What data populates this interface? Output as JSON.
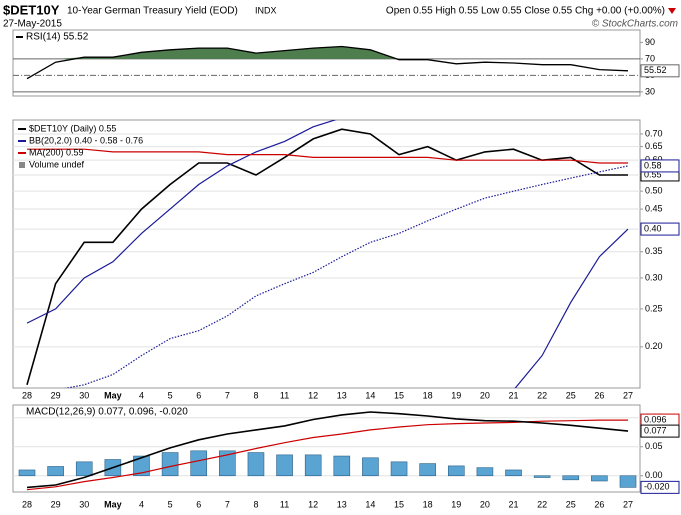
{
  "header": {
    "symbol": "$DET10Y",
    "name": "10-Year German Treasury Yield (EOD)",
    "exchange": "INDX",
    "date": "27-May-2015",
    "quote": "Open 0.55 High 0.55 Low 0.55 Close 0.55 Chg +0.00 (+0.00%)",
    "credit": "© StockCharts.com"
  },
  "chart_data": [
    {
      "type": "line",
      "title": "RSI(14) 55.52",
      "ylim": [
        25,
        105
      ],
      "yticks": [
        30,
        50,
        70,
        90
      ],
      "grid": false,
      "reference_lines": [
        70,
        50,
        30
      ],
      "fill_above": 70,
      "fill_color": "#4e7d4e",
      "color": "#000000",
      "values": [
        46,
        66,
        72,
        72,
        78,
        81,
        83,
        83,
        77,
        80,
        83,
        85,
        81,
        69,
        69,
        64,
        66,
        65,
        63,
        63,
        57,
        55.52
      ],
      "end_label": "55.52"
    },
    {
      "type": "line",
      "log_scale": true,
      "grid": true,
      "ylim": [
        0.157,
        0.76
      ],
      "yticks": [
        {
          "value": 0.2,
          "label": "0.20"
        },
        {
          "value": 0.25,
          "label": "0.25"
        },
        {
          "value": 0.3,
          "label": "0.30"
        },
        {
          "value": 0.35,
          "label": "0.35"
        },
        {
          "value": 0.4,
          "label": "0.40"
        },
        {
          "value": 0.45,
          "label": "0.45"
        },
        {
          "value": 0.5,
          "label": "0.50"
        },
        {
          "value": 0.55,
          "label": "0.55"
        },
        {
          "value": 0.6,
          "label": "0.60"
        },
        {
          "value": 0.65,
          "label": "0.65"
        },
        {
          "value": 0.7,
          "label": "0.70"
        }
      ],
      "categories": [
        "28",
        "29",
        "30",
        "May",
        "4",
        "5",
        "6",
        "7",
        "8",
        "11",
        "12",
        "13",
        "14",
        "15",
        "18",
        "19",
        "20",
        "21",
        "22",
        "25",
        "26",
        "27"
      ],
      "series": [
        {
          "name": "$DET10Y (Daily) 0.55",
          "color": "#000000",
          "values": [
            0.16,
            0.29,
            0.37,
            0.37,
            0.45,
            0.52,
            0.59,
            0.59,
            0.55,
            0.61,
            0.68,
            0.72,
            0.7,
            0.62,
            0.65,
            0.6,
            0.63,
            0.64,
            0.6,
            0.61,
            0.55,
            0.55
          ],
          "end_label": "0.55"
        },
        {
          "name": "BB(20,2.0) 0.40 - 0.58 - 0.76",
          "color": "#1a1a99",
          "upper": [
            0.23,
            0.25,
            0.3,
            0.33,
            0.39,
            0.45,
            0.52,
            0.58,
            0.63,
            0.67,
            0.73,
            0.77,
            null,
            null,
            null,
            null,
            null,
            null,
            null,
            null,
            null,
            null
          ],
          "middle": [
            null,
            0.155,
            0.16,
            0.17,
            0.19,
            0.21,
            0.22,
            0.24,
            0.27,
            0.29,
            0.31,
            0.34,
            0.37,
            0.39,
            0.42,
            0.45,
            0.48,
            0.5,
            0.52,
            0.54,
            0.56,
            0.58
          ],
          "lower": [
            null,
            null,
            null,
            null,
            null,
            null,
            null,
            null,
            null,
            null,
            null,
            null,
            null,
            null,
            null,
            null,
            null,
            0.155,
            0.19,
            0.26,
            0.34,
            0.4
          ],
          "end_labels": {
            "middle": "0.58",
            "lower": "0.40"
          }
        },
        {
          "name": "MA(200) 0.59",
          "color": "#cc0000",
          "values": [
            0.64,
            0.64,
            0.64,
            0.63,
            0.63,
            0.63,
            0.63,
            0.62,
            0.62,
            0.62,
            0.61,
            0.61,
            0.61,
            0.61,
            0.61,
            0.6,
            0.6,
            0.6,
            0.6,
            0.6,
            0.59,
            0.59
          ]
        }
      ],
      "notes": [
        "Volume undef"
      ]
    },
    {
      "type": "combo",
      "title": "MACD(12,26,9) 0.077, 0.096, -0.020",
      "grid": true,
      "ylim": [
        -0.028,
        0.122
      ],
      "yticks": [
        {
          "value": 0,
          "label": "0.00"
        },
        {
          "value": 0.05,
          "label": "0.05"
        },
        {
          "value": 0.1,
          "label": "0.10"
        }
      ],
      "categories": [
        "28",
        "29",
        "30",
        "May",
        "4",
        "5",
        "6",
        "7",
        "8",
        "11",
        "12",
        "13",
        "14",
        "15",
        "18",
        "19",
        "20",
        "21",
        "22",
        "25",
        "26",
        "27"
      ],
      "series": [
        {
          "kind": "bar",
          "color": "#5aa4d4",
          "border": "#1a1a99",
          "values": [
            0.01,
            0.016,
            0.024,
            0.028,
            0.034,
            0.04,
            0.043,
            0.043,
            0.04,
            0.036,
            0.036,
            0.034,
            0.031,
            0.024,
            0.021,
            0.017,
            0.014,
            0.01,
            -0.003,
            -0.007,
            -0.009,
            -0.02
          ],
          "end_label": "-0.020"
        },
        {
          "kind": "line",
          "color": "#cc0000",
          "values": [
            -0.024,
            -0.019,
            -0.01,
            -0.003,
            0.005,
            0.016,
            0.026,
            0.036,
            0.047,
            0.057,
            0.066,
            0.072,
            0.079,
            0.084,
            0.088,
            0.09,
            0.091,
            0.092,
            0.094,
            0.095,
            0.096,
            0.096
          ],
          "end_label": "0.096"
        },
        {
          "kind": "line",
          "color": "#000000",
          "values": [
            -0.02,
            -0.016,
            -0.003,
            0.014,
            0.031,
            0.048,
            0.062,
            0.072,
            0.079,
            0.086,
            0.097,
            0.105,
            0.11,
            0.107,
            0.103,
            0.098,
            0.095,
            0.094,
            0.091,
            0.087,
            0.082,
            0.077
          ],
          "end_label": "0.077"
        }
      ]
    }
  ]
}
